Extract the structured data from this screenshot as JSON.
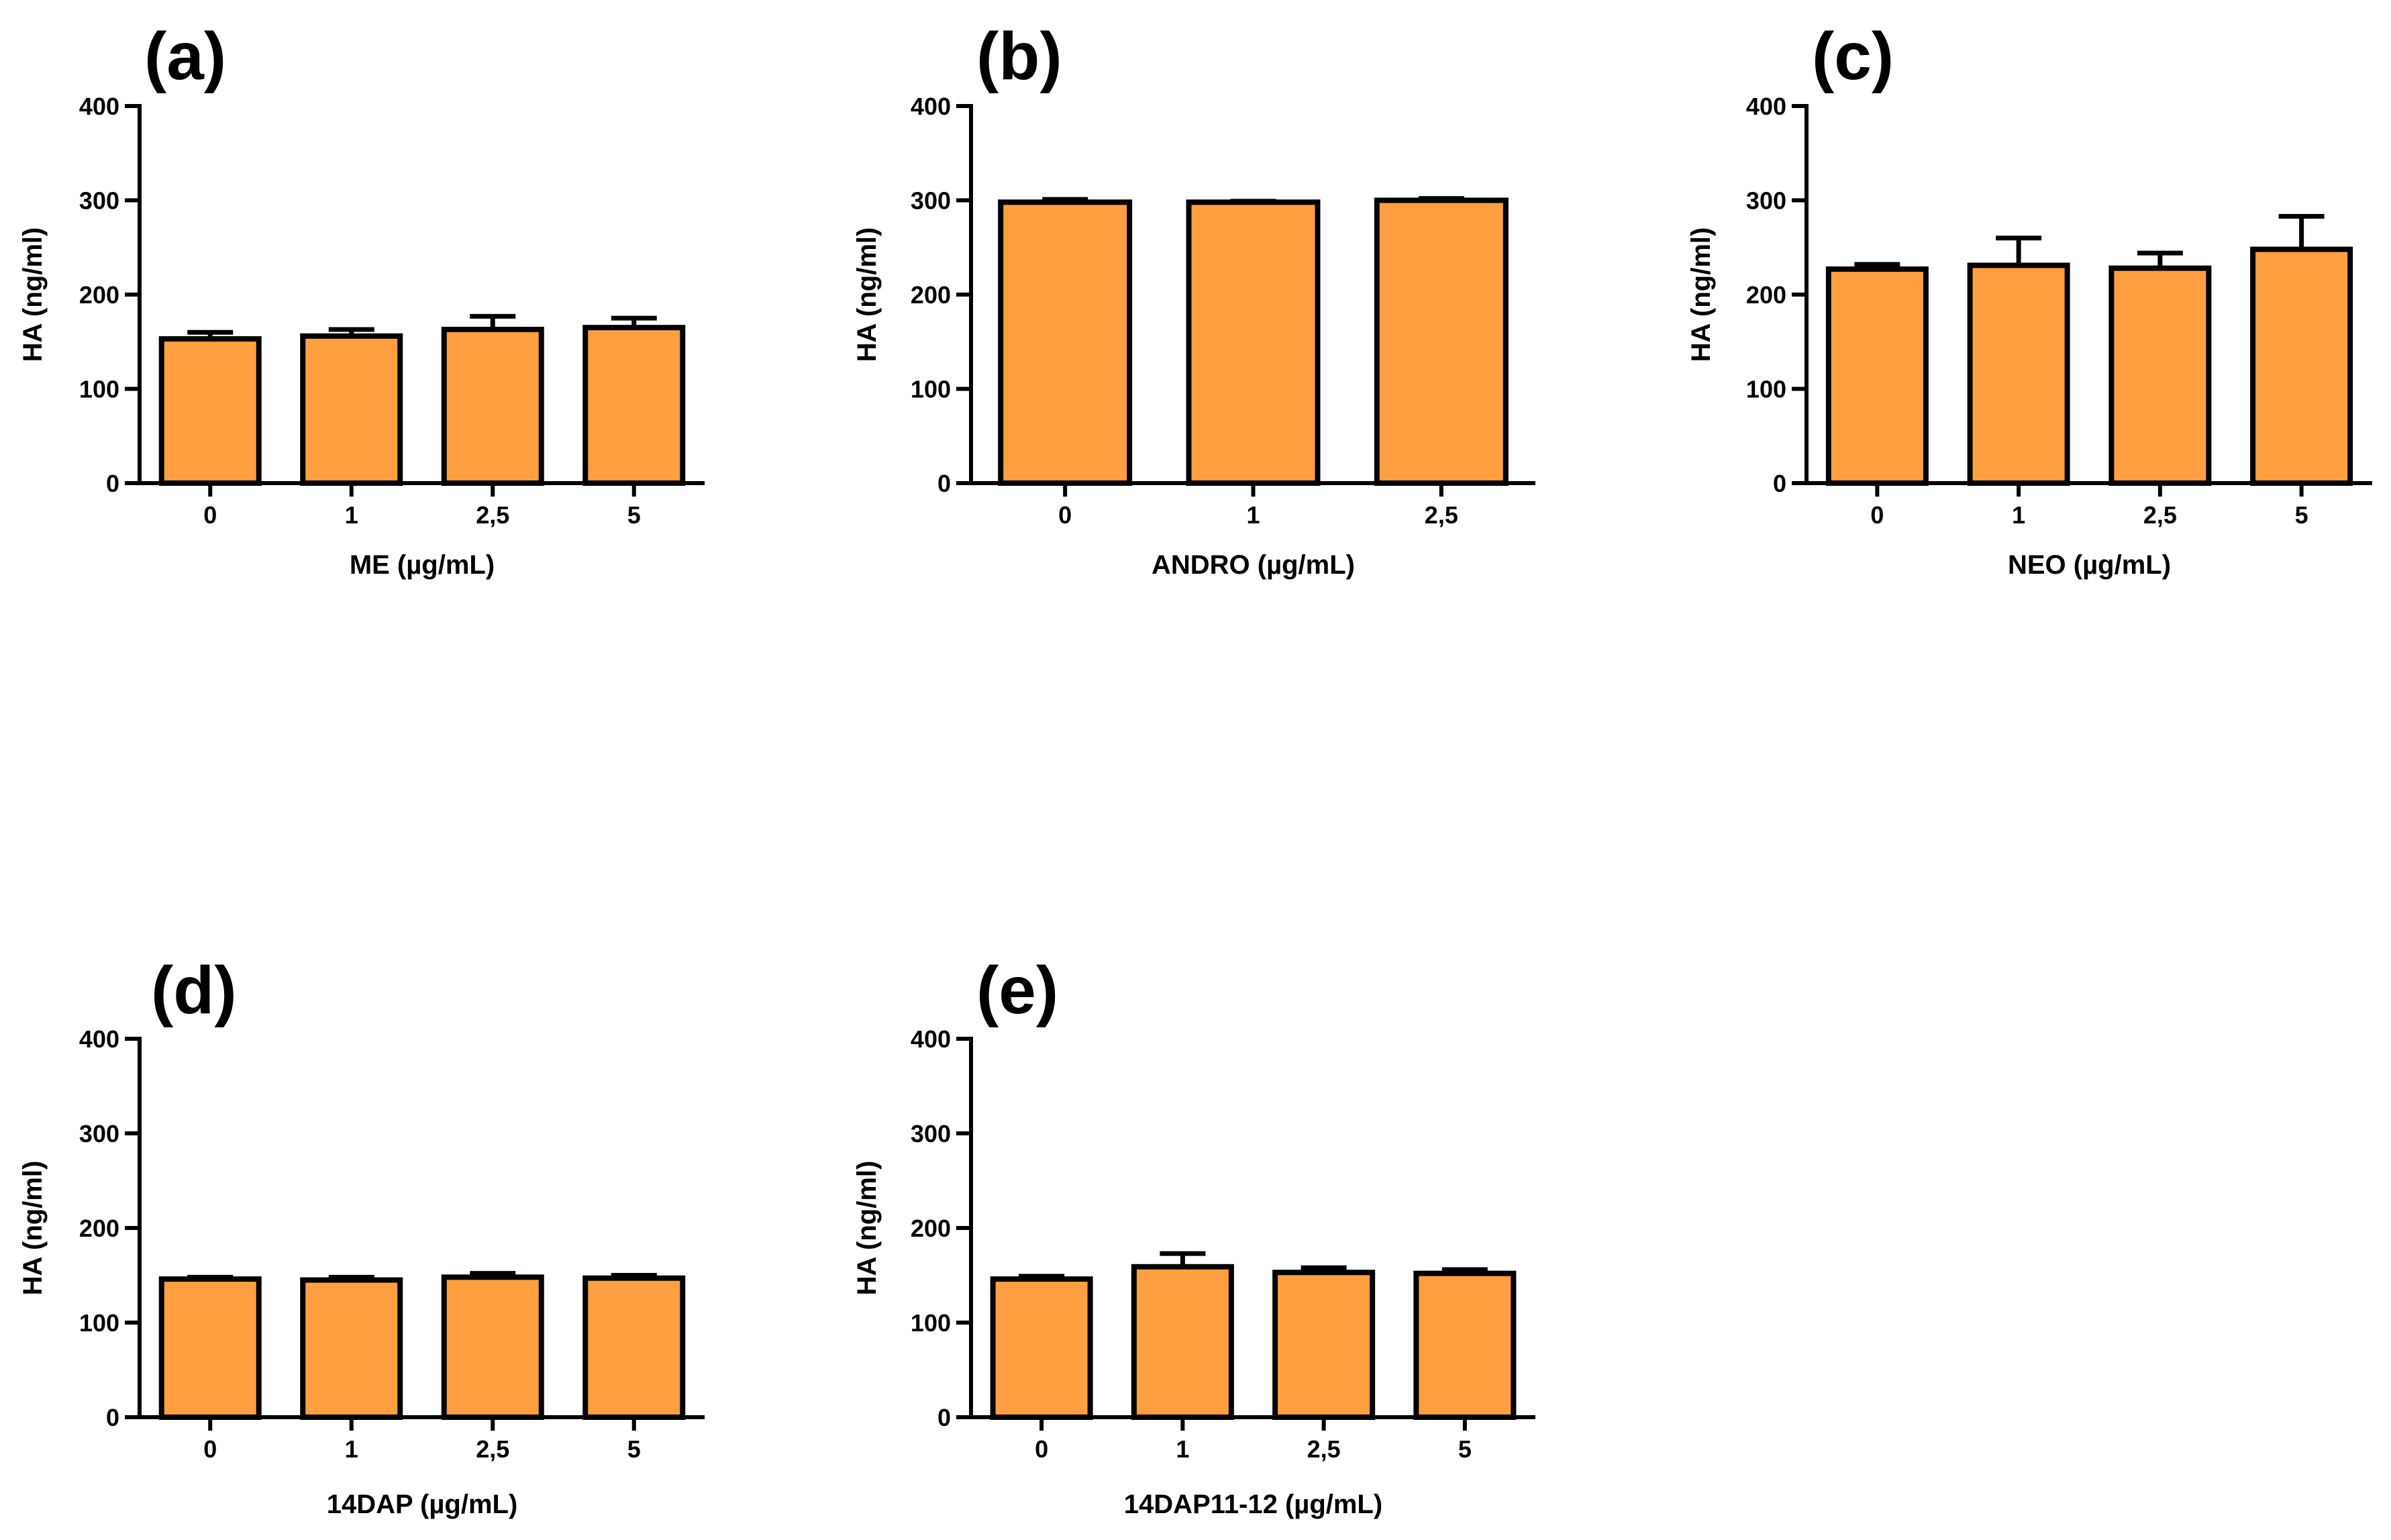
{
  "figure": {
    "bar_color": "#FF9F3F",
    "panels": [
      {
        "id": "a",
        "letter": "(a)",
        "chart_data": {
          "type": "bar",
          "categories": [
            "0",
            "1",
            "2,5",
            "5"
          ],
          "values": [
            153,
            156,
            163,
            165
          ],
          "errors": [
            7,
            7,
            14,
            10
          ],
          "title": "",
          "xlabel": "ME (µg/mL)",
          "ylabel": "HA (ng/ml)",
          "ylim": [
            0,
            400
          ],
          "yticks": [
            "0",
            "100",
            "200",
            "300",
            "400"
          ],
          "grid": false
        }
      },
      {
        "id": "b",
        "letter": "(b)",
        "chart_data": {
          "type": "bar",
          "categories": [
            "0",
            "1",
            "2,5"
          ],
          "values": [
            298,
            298,
            300
          ],
          "errors": [
            3,
            1,
            2
          ],
          "title": "",
          "xlabel": "ANDRO (µg/mL)",
          "ylabel": "HA (ng/ml)",
          "ylim": [
            0,
            400
          ],
          "yticks": [
            "0",
            "100",
            "200",
            "300",
            "400"
          ],
          "grid": false
        }
      },
      {
        "id": "c",
        "letter": "(c)",
        "chart_data": {
          "type": "bar",
          "categories": [
            "0",
            "1",
            "2,5",
            "5"
          ],
          "values": [
            227,
            231,
            228,
            248
          ],
          "errors": [
            5,
            29,
            16,
            35
          ],
          "title": "",
          "xlabel": "NEO (µg/mL)",
          "ylabel": "HA (ng/ml)",
          "ylim": [
            0,
            400
          ],
          "yticks": [
            "0",
            "100",
            "200",
            "300",
            "400"
          ],
          "grid": false
        }
      },
      {
        "id": "d",
        "letter": "(d)",
        "chart_data": {
          "type": "bar",
          "categories": [
            "0",
            "1",
            "2,5",
            "5"
          ],
          "values": [
            146,
            145,
            148,
            147
          ],
          "errors": [
            2,
            3,
            4,
            3
          ],
          "title": "",
          "xlabel": "14DAP (µg/mL)",
          "ylabel": "HA (ng/ml)",
          "ylim": [
            0,
            400
          ],
          "yticks": [
            "0",
            "100",
            "200",
            "300",
            "400"
          ],
          "grid": false
        }
      },
      {
        "id": "e",
        "letter": "(e)",
        "chart_data": {
          "type": "bar",
          "categories": [
            "0",
            "1",
            "2,5",
            "5"
          ],
          "values": [
            146,
            159,
            153,
            152
          ],
          "errors": [
            3,
            14,
            5,
            4
          ],
          "title": "",
          "xlabel": "14DAP11-12 (µg/mL)",
          "ylabel": "HA (ng/ml)",
          "ylim": [
            0,
            400
          ],
          "yticks": [
            "0",
            "100",
            "200",
            "300",
            "400"
          ],
          "grid": false
        }
      }
    ]
  }
}
